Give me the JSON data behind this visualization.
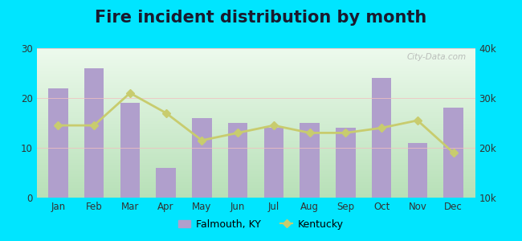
{
  "title": "Fire incident distribution by month",
  "months": [
    "Jan",
    "Feb",
    "Mar",
    "Apr",
    "May",
    "Jun",
    "Jul",
    "Aug",
    "Sep",
    "Oct",
    "Nov",
    "Dec"
  ],
  "falmouth_values": [
    22,
    26,
    19,
    6,
    16,
    15,
    14,
    15,
    14,
    24,
    11,
    18
  ],
  "kentucky_values": [
    24500,
    24500,
    31000,
    27000,
    21500,
    23000,
    24500,
    23000,
    23000,
    24000,
    25500,
    19000
  ],
  "bar_color": "#b09fcc",
  "line_color": "#c8cc6e",
  "bg_gradient_top": "#d8ecd8",
  "bg_gradient_bottom": "#f0faf0",
  "outer_background": "#00e5ff",
  "left_ylim": [
    0,
    30
  ],
  "right_ylim": [
    10000,
    40000
  ],
  "left_yticks": [
    0,
    10,
    20,
    30
  ],
  "right_yticks": [
    10000,
    20000,
    30000,
    40000
  ],
  "right_yticklabels": [
    "10k",
    "20k",
    "30k",
    "40k"
  ],
  "legend_falmouth": "Falmouth, KY",
  "legend_kentucky": "Kentucky",
  "title_fontsize": 15,
  "watermark": "City-Data.com"
}
